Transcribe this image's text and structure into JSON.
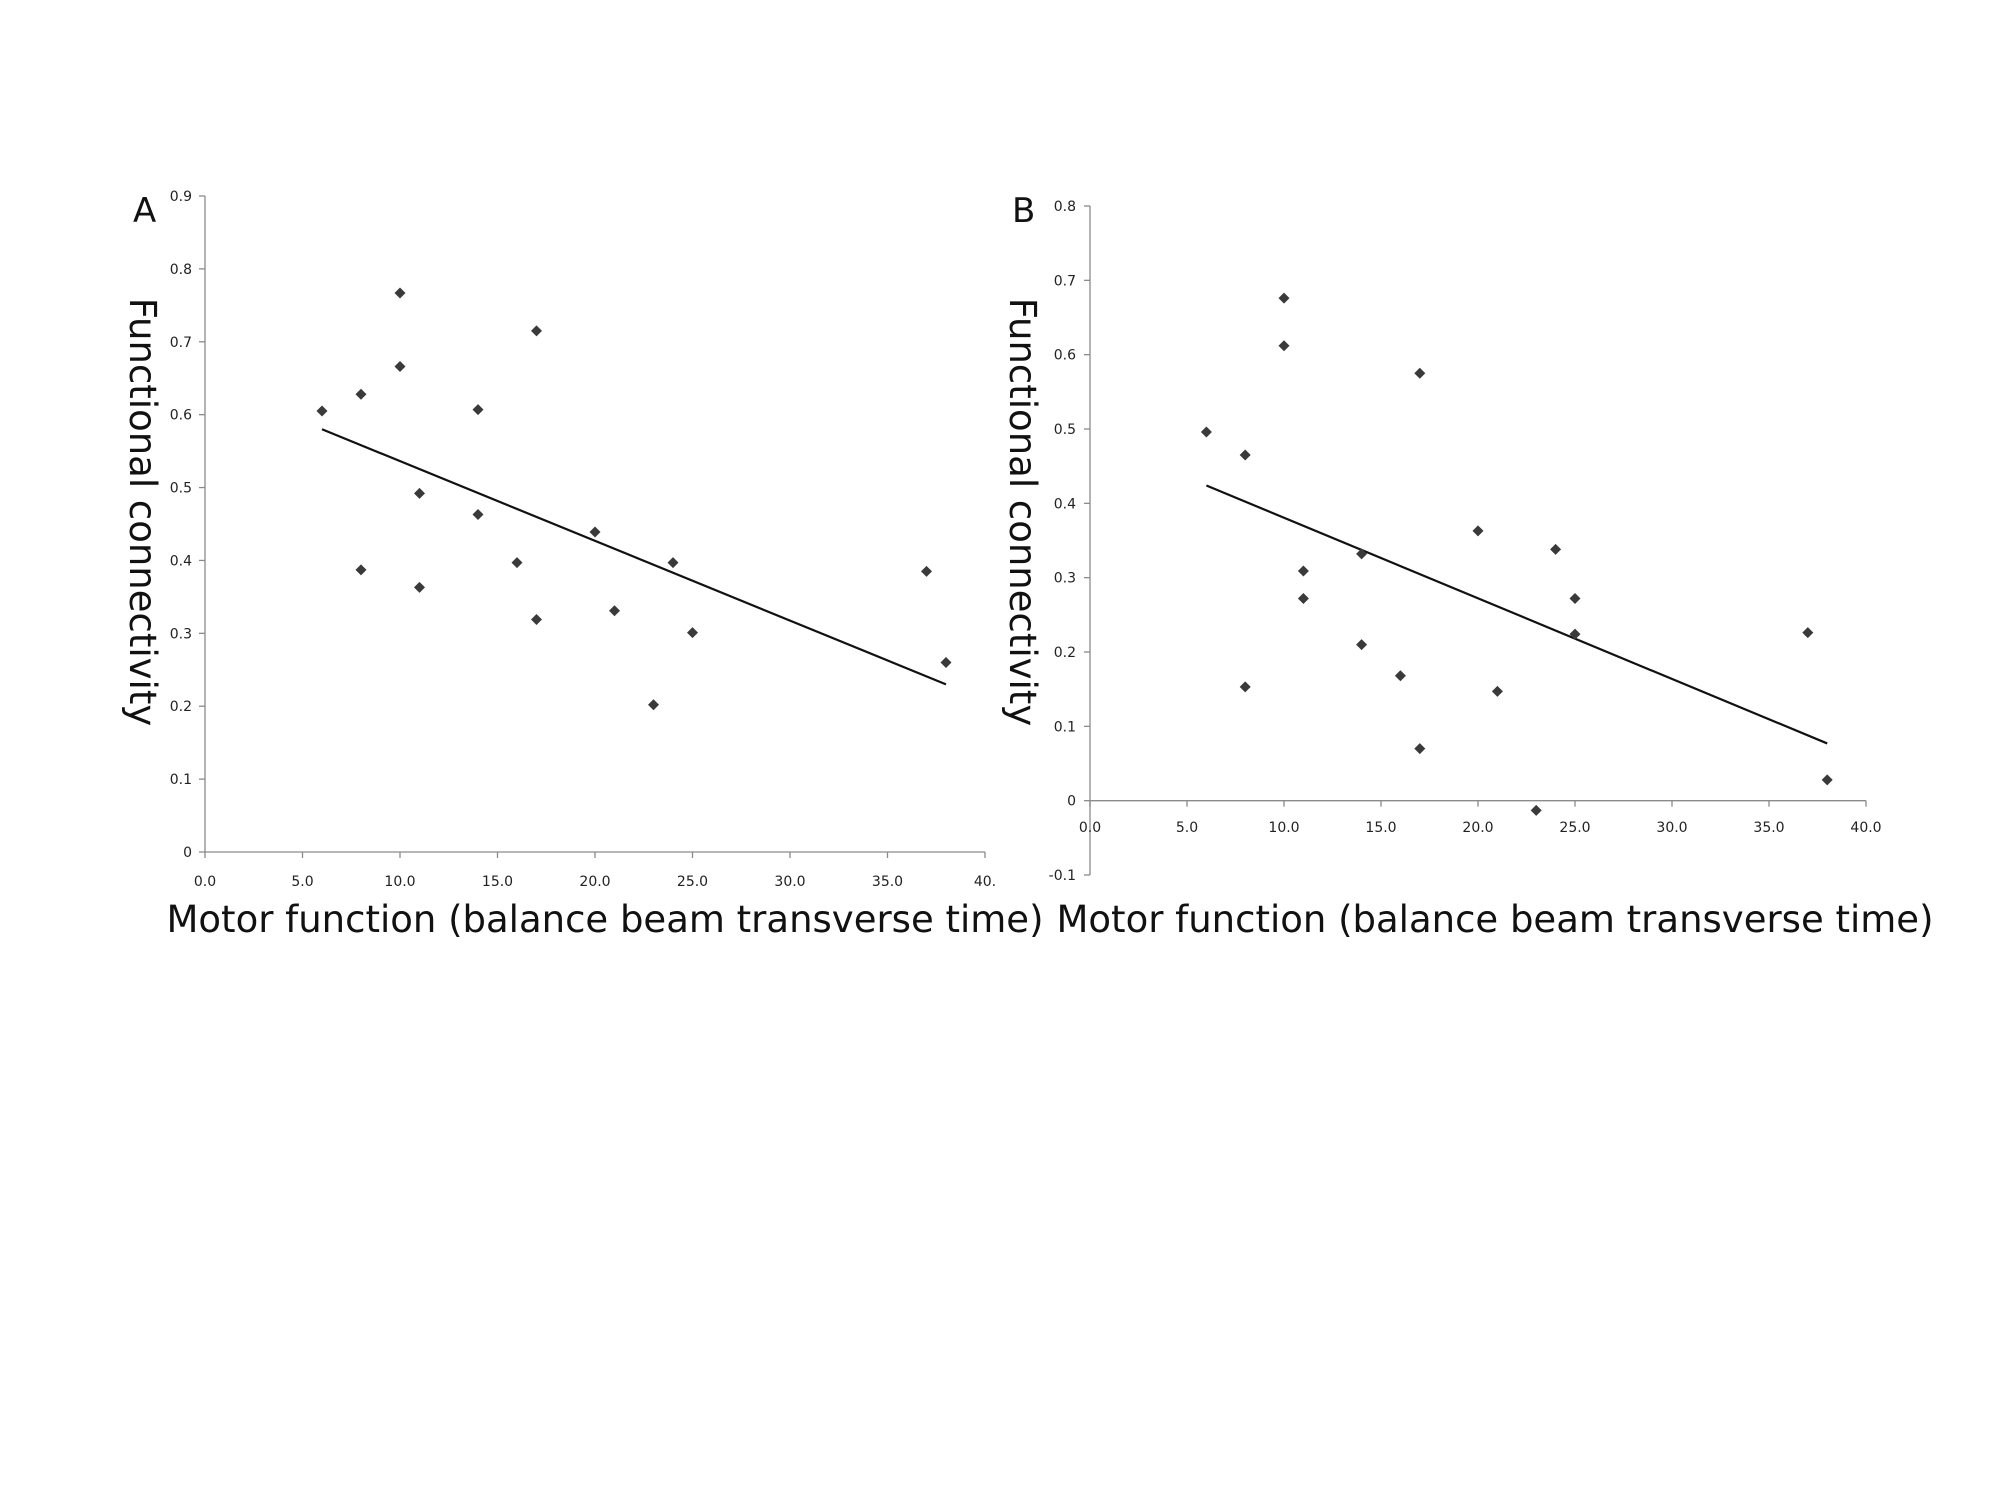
{
  "chart_data": [
    {
      "type": "scatter",
      "panel_label": "A",
      "xlabel": "Motor function (balance beam transverse time)",
      "ylabel": "Functional connectivity",
      "xlim": [
        0,
        40
      ],
      "ylim": [
        0,
        0.9
      ],
      "x_ticks": [
        "0.0",
        "5.0",
        "10.0",
        "15.0",
        "20.0",
        "25.0",
        "30.0",
        "35.0",
        "40."
      ],
      "x_tick_values": [
        0,
        5,
        10,
        15,
        20,
        25,
        30,
        35,
        40
      ],
      "y_ticks": [
        "0",
        "0.1",
        "0.2",
        "0.3",
        "0.4",
        "0.5",
        "0.6",
        "0.7",
        "0.8",
        "0.9"
      ],
      "y_tick_values": [
        0,
        0.1,
        0.2,
        0.3,
        0.4,
        0.5,
        0.6,
        0.7,
        0.8,
        0.9
      ],
      "points": [
        {
          "x": 6,
          "y": 0.605
        },
        {
          "x": 8,
          "y": 0.628
        },
        {
          "x": 8,
          "y": 0.387
        },
        {
          "x": 10,
          "y": 0.767
        },
        {
          "x": 10,
          "y": 0.666
        },
        {
          "x": 11,
          "y": 0.492
        },
        {
          "x": 11,
          "y": 0.363
        },
        {
          "x": 14,
          "y": 0.607
        },
        {
          "x": 14,
          "y": 0.463
        },
        {
          "x": 16,
          "y": 0.397
        },
        {
          "x": 17,
          "y": 0.715
        },
        {
          "x": 17,
          "y": 0.319
        },
        {
          "x": 20,
          "y": 0.439
        },
        {
          "x": 21,
          "y": 0.331
        },
        {
          "x": 23,
          "y": 0.202
        },
        {
          "x": 24,
          "y": 0.397
        },
        {
          "x": 25,
          "y": 0.301
        },
        {
          "x": 37,
          "y": 0.385
        },
        {
          "x": 38,
          "y": 0.26
        }
      ],
      "trendline": [
        {
          "x": 6,
          "y": 0.58
        },
        {
          "x": 38,
          "y": 0.23
        }
      ],
      "grid": false,
      "legend": "none"
    },
    {
      "type": "scatter",
      "panel_label": "B",
      "xlabel": "Motor function (balance beam transverse time)",
      "ylabel": "Functional connectivity",
      "xlim": [
        0,
        40
      ],
      "ylim": [
        -0.1,
        0.8
      ],
      "x_ticks": [
        "0.0",
        "5.0",
        "10.0",
        "15.0",
        "20.0",
        "25.0",
        "30.0",
        "35.0",
        "40.0"
      ],
      "x_tick_values": [
        0,
        5,
        10,
        15,
        20,
        25,
        30,
        35,
        40
      ],
      "y_ticks": [
        "-0.1",
        "0",
        "0.1",
        "0.2",
        "0.3",
        "0.4",
        "0.5",
        "0.6",
        "0.7",
        "0.8"
      ],
      "y_tick_values": [
        -0.1,
        0,
        0.1,
        0.2,
        0.3,
        0.4,
        0.5,
        0.6,
        0.7,
        0.8
      ],
      "points": [
        {
          "x": 6,
          "y": 0.496
        },
        {
          "x": 8,
          "y": 0.465
        },
        {
          "x": 8,
          "y": 0.153
        },
        {
          "x": 10,
          "y": 0.676
        },
        {
          "x": 10,
          "y": 0.612
        },
        {
          "x": 11,
          "y": 0.309
        },
        {
          "x": 11,
          "y": 0.272
        },
        {
          "x": 14,
          "y": 0.332
        },
        {
          "x": 14,
          "y": 0.21
        },
        {
          "x": 16,
          "y": 0.168
        },
        {
          "x": 17,
          "y": 0.575
        },
        {
          "x": 17,
          "y": 0.07
        },
        {
          "x": 20,
          "y": 0.363
        },
        {
          "x": 21,
          "y": 0.147
        },
        {
          "x": 23,
          "y": -0.013
        },
        {
          "x": 24,
          "y": 0.338
        },
        {
          "x": 25,
          "y": 0.272
        },
        {
          "x": 25,
          "y": 0.224
        },
        {
          "x": 37,
          "y": 0.226
        },
        {
          "x": 38,
          "y": 0.028
        }
      ],
      "trendline": [
        {
          "x": 6,
          "y": 0.424
        },
        {
          "x": 38,
          "y": 0.077
        }
      ],
      "grid": false,
      "legend": "none"
    }
  ]
}
